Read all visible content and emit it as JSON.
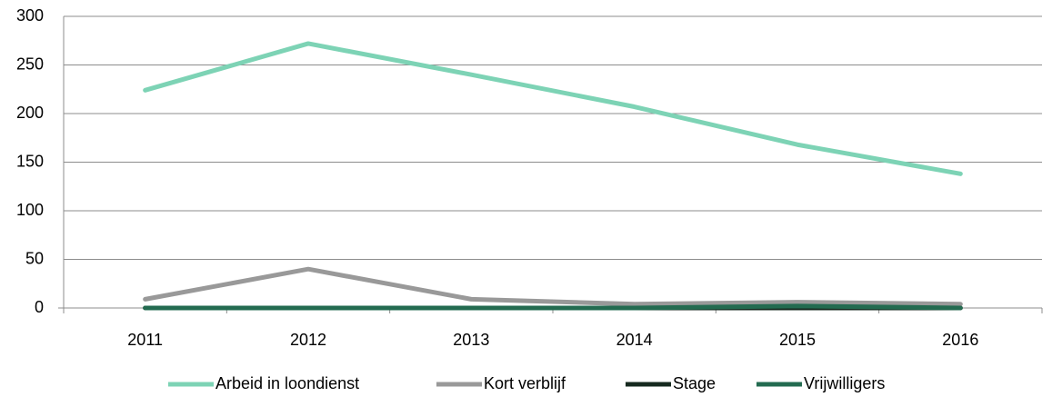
{
  "chart_data": {
    "type": "line",
    "categories": [
      "2011",
      "2012",
      "2013",
      "2014",
      "2015",
      "2016"
    ],
    "series": [
      {
        "name": "Arbeid in loondienst",
        "color": "#7dd3b5",
        "values": [
          224,
          272,
          240,
          207,
          168,
          138
        ]
      },
      {
        "name": "Kort verblijf",
        "color": "#999999",
        "values": [
          9,
          40,
          9,
          4,
          6,
          4
        ]
      },
      {
        "name": "Stage",
        "color": "#16291f",
        "values": [
          0,
          0,
          0,
          0,
          0,
          0
        ]
      },
      {
        "name": "Vrijwilligers",
        "color": "#236b50",
        "values": [
          0,
          0,
          0,
          0,
          2,
          0
        ]
      }
    ],
    "ylim": [
      0,
      300
    ],
    "yticks": [
      0,
      50,
      100,
      150,
      200,
      250,
      300
    ],
    "grid": true,
    "legend": "bottom"
  }
}
